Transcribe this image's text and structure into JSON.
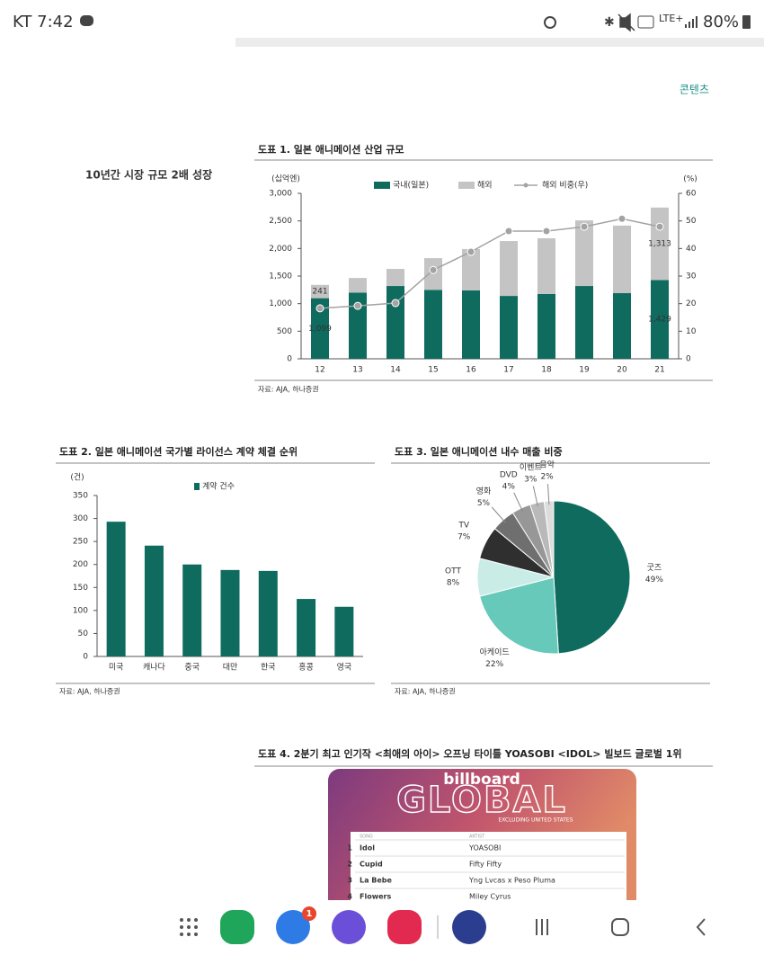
{
  "status_bar": {
    "carrier_time": "KT 7:42",
    "network": "LTE+",
    "battery": "80%"
  },
  "header": {
    "section": "콘텐츠"
  },
  "sidebar": {
    "label": "10년간 시장 규모 2배 성장"
  },
  "chart_data": [
    {
      "type": "bar",
      "stacked": true,
      "title": "도표 1. 일본 애니메이션 산업 규모",
      "y_label": "(십억엔)",
      "y2_label": "(%)",
      "categories": [
        "12",
        "13",
        "14",
        "15",
        "16",
        "17",
        "18",
        "19",
        "20",
        "21"
      ],
      "series": [
        {
          "name": "국내(일본)",
          "color": "#0e6b5e",
          "values": [
            1099,
            1200,
            1320,
            1250,
            1240,
            1140,
            1175,
            1320,
            1190,
            1429
          ],
          "value_labels": [
            "1,099",
            null,
            null,
            null,
            null,
            null,
            null,
            null,
            null,
            "1,429"
          ]
        },
        {
          "name": "해외",
          "color": "#c4c4c4",
          "values": [
            241,
            265,
            310,
            575,
            750,
            995,
            1010,
            1190,
            1225,
            1313
          ],
          "value_labels": [
            "241",
            null,
            null,
            null,
            null,
            null,
            null,
            null,
            null,
            "1,313"
          ]
        },
        {
          "name": "해외 비중(우)",
          "type": "line",
          "axis": "y2",
          "color": "#a3a3a3",
          "values": [
            18.3,
            19.2,
            20.2,
            32.2,
            38.8,
            46.3,
            46.3,
            47.9,
            50.8,
            47.9
          ]
        }
      ],
      "ylim": [
        0,
        3000
      ],
      "yticks": [
        0,
        500,
        {
          "value": 1000,
          "label": "1,000"
        },
        {
          "value": 1500,
          "label": "1,500"
        },
        {
          "value": 2000,
          "label": "2,000"
        },
        {
          "value": 2500,
          "label": "2,500"
        },
        {
          "value": 3000,
          "label": "3,000"
        }
      ],
      "y2lim": [
        0,
        60
      ],
      "y2ticks": [
        0,
        10,
        20,
        30,
        40,
        50,
        60
      ],
      "source": "자료: AJA, 하나증권"
    },
    {
      "type": "bar",
      "title": "도표 2. 일본 애니메이션 국가별 라이선스 계약 체결 순위",
      "y_label": "(건)",
      "categories": [
        "미국",
        "캐나다",
        "중국",
        "대만",
        "한국",
        "홍콩",
        "영국"
      ],
      "series": [
        {
          "name": "계약 건수",
          "color": "#0e6b5e",
          "values": [
            293,
            241,
            200,
            188,
            186,
            125,
            108
          ]
        }
      ],
      "ylim": [
        0,
        350
      ],
      "yticks": [
        0,
        50,
        100,
        150,
        200,
        250,
        300,
        350
      ],
      "source": "자료: AJA, 하나증권"
    },
    {
      "type": "pie",
      "title": "도표 3. 일본 애니메이션 내수 매출 비중",
      "categories": [
        "굿즈",
        "아케이드",
        "OTT",
        "TV",
        "영화",
        "DVD",
        "이벤트",
        "음악"
      ],
      "values": [
        49,
        22,
        8,
        7,
        5,
        4,
        3,
        2
      ],
      "value_labels": [
        "49%",
        "22%",
        "8%",
        "7%",
        "5%",
        "4%",
        "3%",
        "2%"
      ],
      "colors": [
        "#0e6b5e",
        "#66c9b9",
        "#c9ece6",
        "#2f2f2f",
        "#6f6f6f",
        "#979797",
        "#b9b9b9",
        "#dddddd"
      ],
      "source": "자료: AJA, 하나증권"
    }
  ],
  "figure4": {
    "title": "도표 4. 2분기 최고 인기작 <최애의 아이> 오프닝 타이틀 YOASOBI <IDOL> 빌보드 글로벌 1위",
    "image": {
      "brand": "billboard",
      "heading": "GLOBAL",
      "subheading": "EXCLUDING UNITED STATES",
      "columns": [
        "SONG",
        "ARTIST"
      ],
      "rows": [
        [
          1,
          "Idol",
          "YOASOBI"
        ],
        [
          2,
          "Cupid",
          "Fifty Fifty"
        ],
        [
          3,
          "La Bebe",
          "Yng Lvcas x Peso Pluma"
        ],
        [
          4,
          "Flowers",
          "Miley Cyrus"
        ]
      ]
    }
  },
  "nav": {
    "badge": 1
  }
}
